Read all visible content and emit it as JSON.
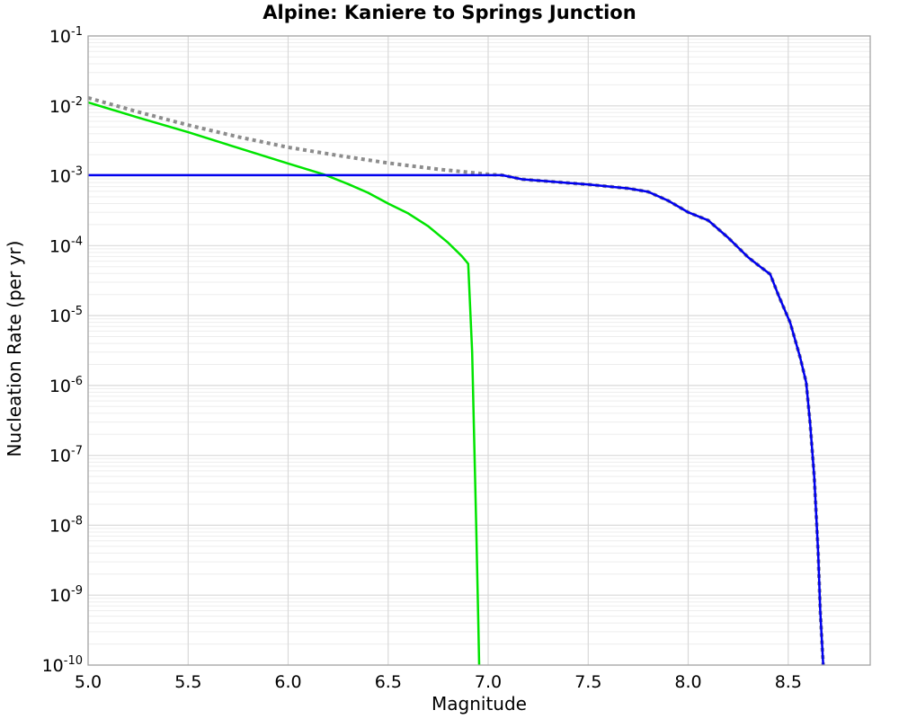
{
  "chart_data": {
    "type": "line",
    "title": "Alpine: Kaniere to Springs Junction",
    "xlabel": "Magnitude",
    "ylabel": "Nucleation Rate (per yr)",
    "x_axis": {
      "min": 5.0,
      "max": 8.91,
      "ticks": [
        5.0,
        5.5,
        6.0,
        6.5,
        7.0,
        7.5,
        8.0,
        8.5
      ],
      "tick_labels": [
        "5.0",
        "5.5",
        "6.0",
        "6.5",
        "7.0",
        "7.5",
        "8.0",
        "8.5"
      ]
    },
    "y_axis": {
      "scale": "log",
      "min": 1e-10,
      "max": 0.1,
      "tick_exponents": [
        -1,
        -2,
        -3,
        -4,
        -5,
        -6,
        -7,
        -8,
        -9,
        -10
      ],
      "tick_labels": [
        "10^-1",
        "10^-2",
        "10^-3",
        "10^-4",
        "10^-5",
        "10^-6",
        "10^-7",
        "10^-8",
        "10^-9",
        "10^-10"
      ]
    },
    "grid": {
      "major": true,
      "minor_y": true,
      "legend": "none"
    },
    "series": [
      {
        "name": "green-solid-line",
        "style": "solid",
        "color": "#00e400",
        "width": 2.5,
        "points": [
          [
            5.0,
            0.0112
          ],
          [
            5.25,
            0.0068
          ],
          [
            5.5,
            0.0042
          ],
          [
            5.75,
            0.0025
          ],
          [
            6.0,
            0.0015
          ],
          [
            6.18,
            0.00104
          ],
          [
            6.3,
            0.00076
          ],
          [
            6.4,
            0.00057
          ],
          [
            6.5,
            0.0004
          ],
          [
            6.6,
            0.00029
          ],
          [
            6.7,
            0.00019
          ],
          [
            6.8,
            0.00011
          ],
          [
            6.87,
            7e-05
          ],
          [
            6.9,
            5.5e-05
          ],
          [
            6.92,
            3e-06
          ],
          [
            6.93,
            1.8e-07
          ],
          [
            6.94,
            1e-08
          ],
          [
            6.95,
            5e-10
          ],
          [
            6.955,
            1e-10
          ]
        ]
      },
      {
        "name": "gray-dotted-line",
        "style": "dotted",
        "color": "#8c8c8c",
        "width": 4,
        "points": [
          [
            5.0,
            0.013
          ],
          [
            5.25,
            0.0082
          ],
          [
            5.5,
            0.0053
          ],
          [
            5.75,
            0.0036
          ],
          [
            6.0,
            0.00255
          ],
          [
            6.25,
            0.00195
          ],
          [
            6.5,
            0.00152
          ],
          [
            6.75,
            0.00124
          ],
          [
            7.0,
            0.00105
          ],
          [
            7.07,
            0.00102
          ],
          [
            7.17,
            0.00089
          ],
          [
            7.3,
            0.00083
          ],
          [
            7.5,
            0.00075
          ],
          [
            7.7,
            0.00066
          ],
          [
            7.8,
            0.00059
          ],
          [
            7.9,
            0.00044
          ],
          [
            8.0,
            0.0003
          ],
          [
            8.1,
            0.00023
          ],
          [
            8.2,
            0.00013
          ],
          [
            8.3,
            6.8e-05
          ],
          [
            8.36,
            5e-05
          ],
          [
            8.41,
            3.9e-05
          ],
          [
            8.45,
            2e-05
          ],
          [
            8.51,
            7.9e-06
          ],
          [
            8.56,
            2.5e-06
          ],
          [
            8.59,
            1.1e-06
          ],
          [
            8.61,
            2.8e-07
          ],
          [
            8.63,
            5e-08
          ],
          [
            8.65,
            4e-09
          ],
          [
            8.66,
            6e-10
          ],
          [
            8.675,
            1e-10
          ]
        ]
      },
      {
        "name": "blue-solid-line",
        "style": "solid",
        "color": "#0000ee",
        "width": 2.5,
        "points": [
          [
            5.0,
            0.00102
          ],
          [
            7.07,
            0.00102
          ],
          [
            7.17,
            0.00089
          ],
          [
            7.3,
            0.00083
          ],
          [
            7.5,
            0.00075
          ],
          [
            7.7,
            0.00066
          ],
          [
            7.8,
            0.00059
          ],
          [
            7.9,
            0.00044
          ],
          [
            8.0,
            0.0003
          ],
          [
            8.1,
            0.00023
          ],
          [
            8.2,
            0.00013
          ],
          [
            8.3,
            6.8e-05
          ],
          [
            8.36,
            5e-05
          ],
          [
            8.41,
            3.9e-05
          ],
          [
            8.45,
            2e-05
          ],
          [
            8.51,
            7.9e-06
          ],
          [
            8.56,
            2.5e-06
          ],
          [
            8.59,
            1.1e-06
          ],
          [
            8.61,
            2.8e-07
          ],
          [
            8.63,
            5e-08
          ],
          [
            8.65,
            4e-09
          ],
          [
            8.66,
            6e-10
          ],
          [
            8.675,
            1e-10
          ]
        ]
      }
    ]
  }
}
